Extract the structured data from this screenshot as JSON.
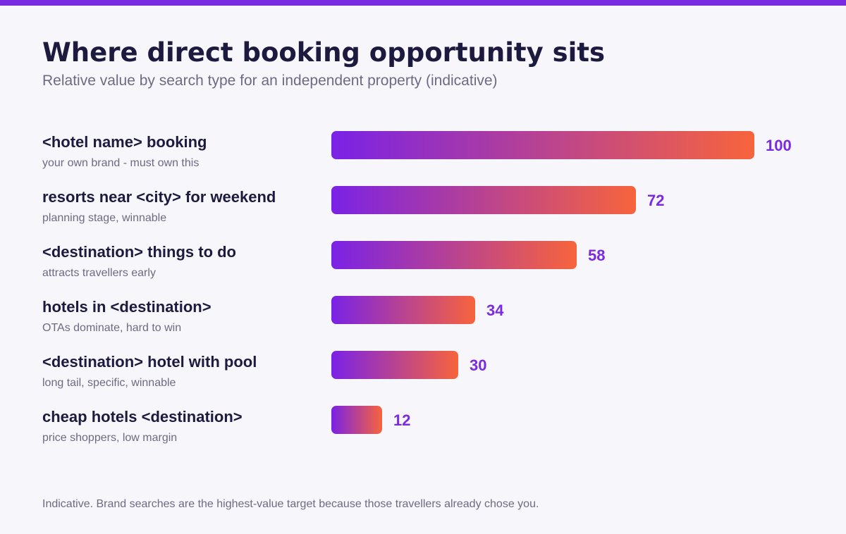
{
  "header": {
    "title": "Where direct booking opportunity sits",
    "subtitle": "Relative value by search type for an independent property (indicative)"
  },
  "footer": {
    "note": "Indicative. Brand searches are the highest-value target because those travellers already chose you."
  },
  "colors": {
    "accent": "#7a2ae0",
    "gradient_start": "#7a22e6",
    "gradient_end": "#f7643c",
    "title": "#1c1a3e",
    "muted": "#6e6a82",
    "background": "#f7f6fb"
  },
  "chart_data": {
    "type": "bar",
    "orientation": "horizontal",
    "title": "Where direct booking opportunity sits",
    "subtitle": "Relative value by search type for an independent property (indicative)",
    "xlim": [
      0,
      100
    ],
    "grid": false,
    "categories": [
      "<hotel name> booking",
      "resorts near <city> for weekend",
      "<destination> things to do",
      "hotels in <destination>",
      "<destination> hotel with pool",
      "cheap hotels <destination>"
    ],
    "notes": [
      "your own brand - must own this",
      "planning stage, winnable",
      "attracts travellers early",
      "OTAs dominate, hard to win",
      "long tail, specific, winnable",
      "price shoppers, low margin"
    ],
    "values": [
      100,
      72,
      58,
      34,
      30,
      12
    ]
  }
}
